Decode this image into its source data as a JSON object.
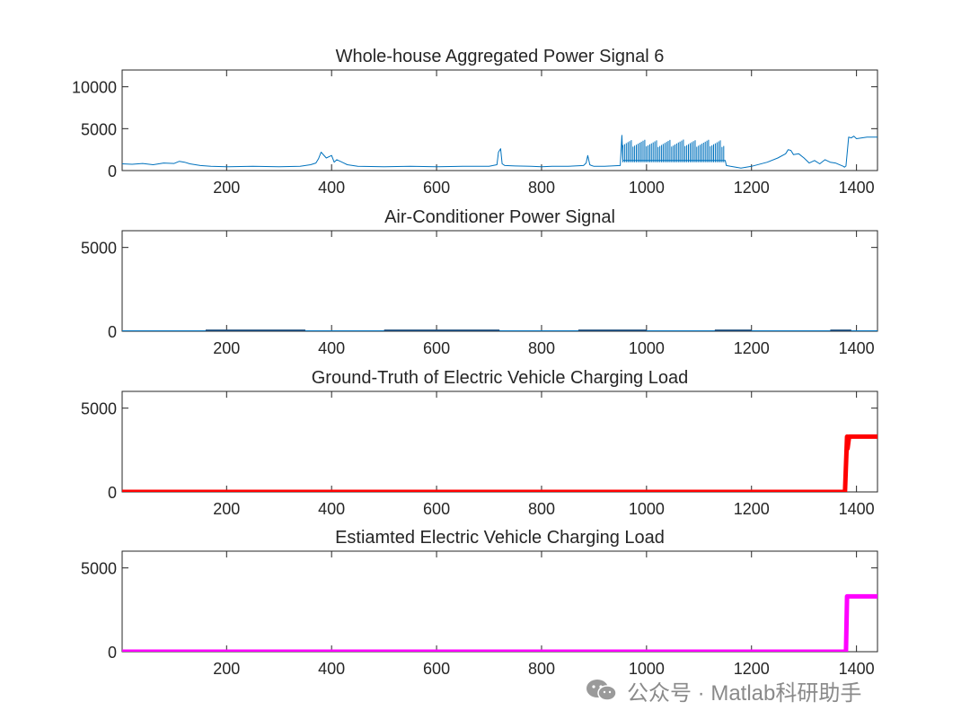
{
  "watermark": {
    "text": "公众号 · Matlab科研助手",
    "icon": "wechat-icon"
  },
  "chart_data": [
    {
      "type": "line",
      "title": "Whole-house Aggregated Power Signal 6",
      "xlabel": "",
      "ylabel": "",
      "xlim": [
        1,
        1440
      ],
      "ylim": [
        0,
        12000
      ],
      "xticks": [
        200,
        400,
        600,
        800,
        1000,
        1200,
        1400
      ],
      "yticks": [
        0,
        5000,
        10000
      ],
      "color": "#0072BD",
      "series": [
        {
          "x": [
            1,
            20,
            40,
            60,
            80,
            100,
            110,
            120,
            130,
            150,
            170,
            200,
            250,
            300,
            340,
            360,
            370,
            375,
            380,
            390,
            400,
            405,
            410,
            420,
            430,
            450,
            500,
            550,
            600,
            650,
            700,
            715,
            718,
            722,
            725,
            730,
            750,
            780,
            800,
            820,
            850,
            880,
            885,
            888,
            892,
            895,
            900,
            920,
            950,
            953,
            955,
            1150,
            1152,
            1160,
            1180,
            1200,
            1230,
            1250,
            1265,
            1270,
            1275,
            1280,
            1290,
            1300,
            1310,
            1320,
            1330,
            1340,
            1350,
            1360,
            1375,
            1377,
            1380,
            1385,
            1390,
            1395,
            1400,
            1420,
            1440
          ],
          "y": [
            800,
            750,
            850,
            700,
            900,
            850,
            1100,
            1000,
            800,
            600,
            500,
            450,
            500,
            450,
            500,
            700,
            900,
            1400,
            2200,
            1500,
            1800,
            1000,
            1300,
            1000,
            700,
            500,
            450,
            500,
            450,
            500,
            500,
            700,
            2200,
            2600,
            800,
            600,
            550,
            500,
            450,
            500,
            500,
            600,
            900,
            1800,
            700,
            600,
            500,
            500,
            600,
            4200,
            1200,
            1200,
            600,
            500,
            300,
            500,
            1000,
            1500,
            2000,
            2500,
            2400,
            1900,
            2000,
            1500,
            900,
            1200,
            800,
            1300,
            1000,
            900,
            500,
            400,
            550,
            4000,
            3900,
            4100,
            3800,
            4000,
            4000
          ]
        }
      ]
    },
    {
      "type": "line",
      "title": "Air-Conditioner Power Signal",
      "xlabel": "",
      "ylabel": "",
      "xlim": [
        1,
        1440
      ],
      "ylim": [
        0,
        6000
      ],
      "xticks": [
        200,
        400,
        600,
        800,
        1000,
        1200,
        1400
      ],
      "yticks": [
        0,
        5000
      ],
      "color": "#0072BD",
      "series": [
        {
          "x": [
            1,
            1440
          ],
          "y": [
            20,
            20
          ]
        }
      ]
    },
    {
      "type": "line",
      "title": "Ground-Truth of Electric Vehicle Charging Load",
      "xlabel": "",
      "ylabel": "",
      "xlim": [
        1,
        1440
      ],
      "ylim": [
        0,
        6000
      ],
      "xticks": [
        200,
        400,
        600,
        800,
        1000,
        1200,
        1400
      ],
      "yticks": [
        0,
        5000
      ],
      "color": "#FF0000",
      "series": [
        {
          "x": [
            1,
            1378,
            1382,
            1383,
            1386,
            1440
          ],
          "y": [
            0,
            0,
            3300,
            2600,
            3300,
            3300
          ]
        }
      ]
    },
    {
      "type": "line",
      "title": "Estiamted Electric Vehicle Charging Load",
      "xlabel": "",
      "ylabel": "",
      "xlim": [
        1,
        1440
      ],
      "ylim": [
        0,
        6000
      ],
      "xticks": [
        200,
        400,
        600,
        800,
        1000,
        1200,
        1400
      ],
      "yticks": [
        0,
        5000
      ],
      "color": "#FF00FF",
      "series": [
        {
          "x": [
            1,
            1380,
            1382,
            1440
          ],
          "y": [
            0,
            0,
            3300,
            3300
          ]
        }
      ]
    }
  ]
}
